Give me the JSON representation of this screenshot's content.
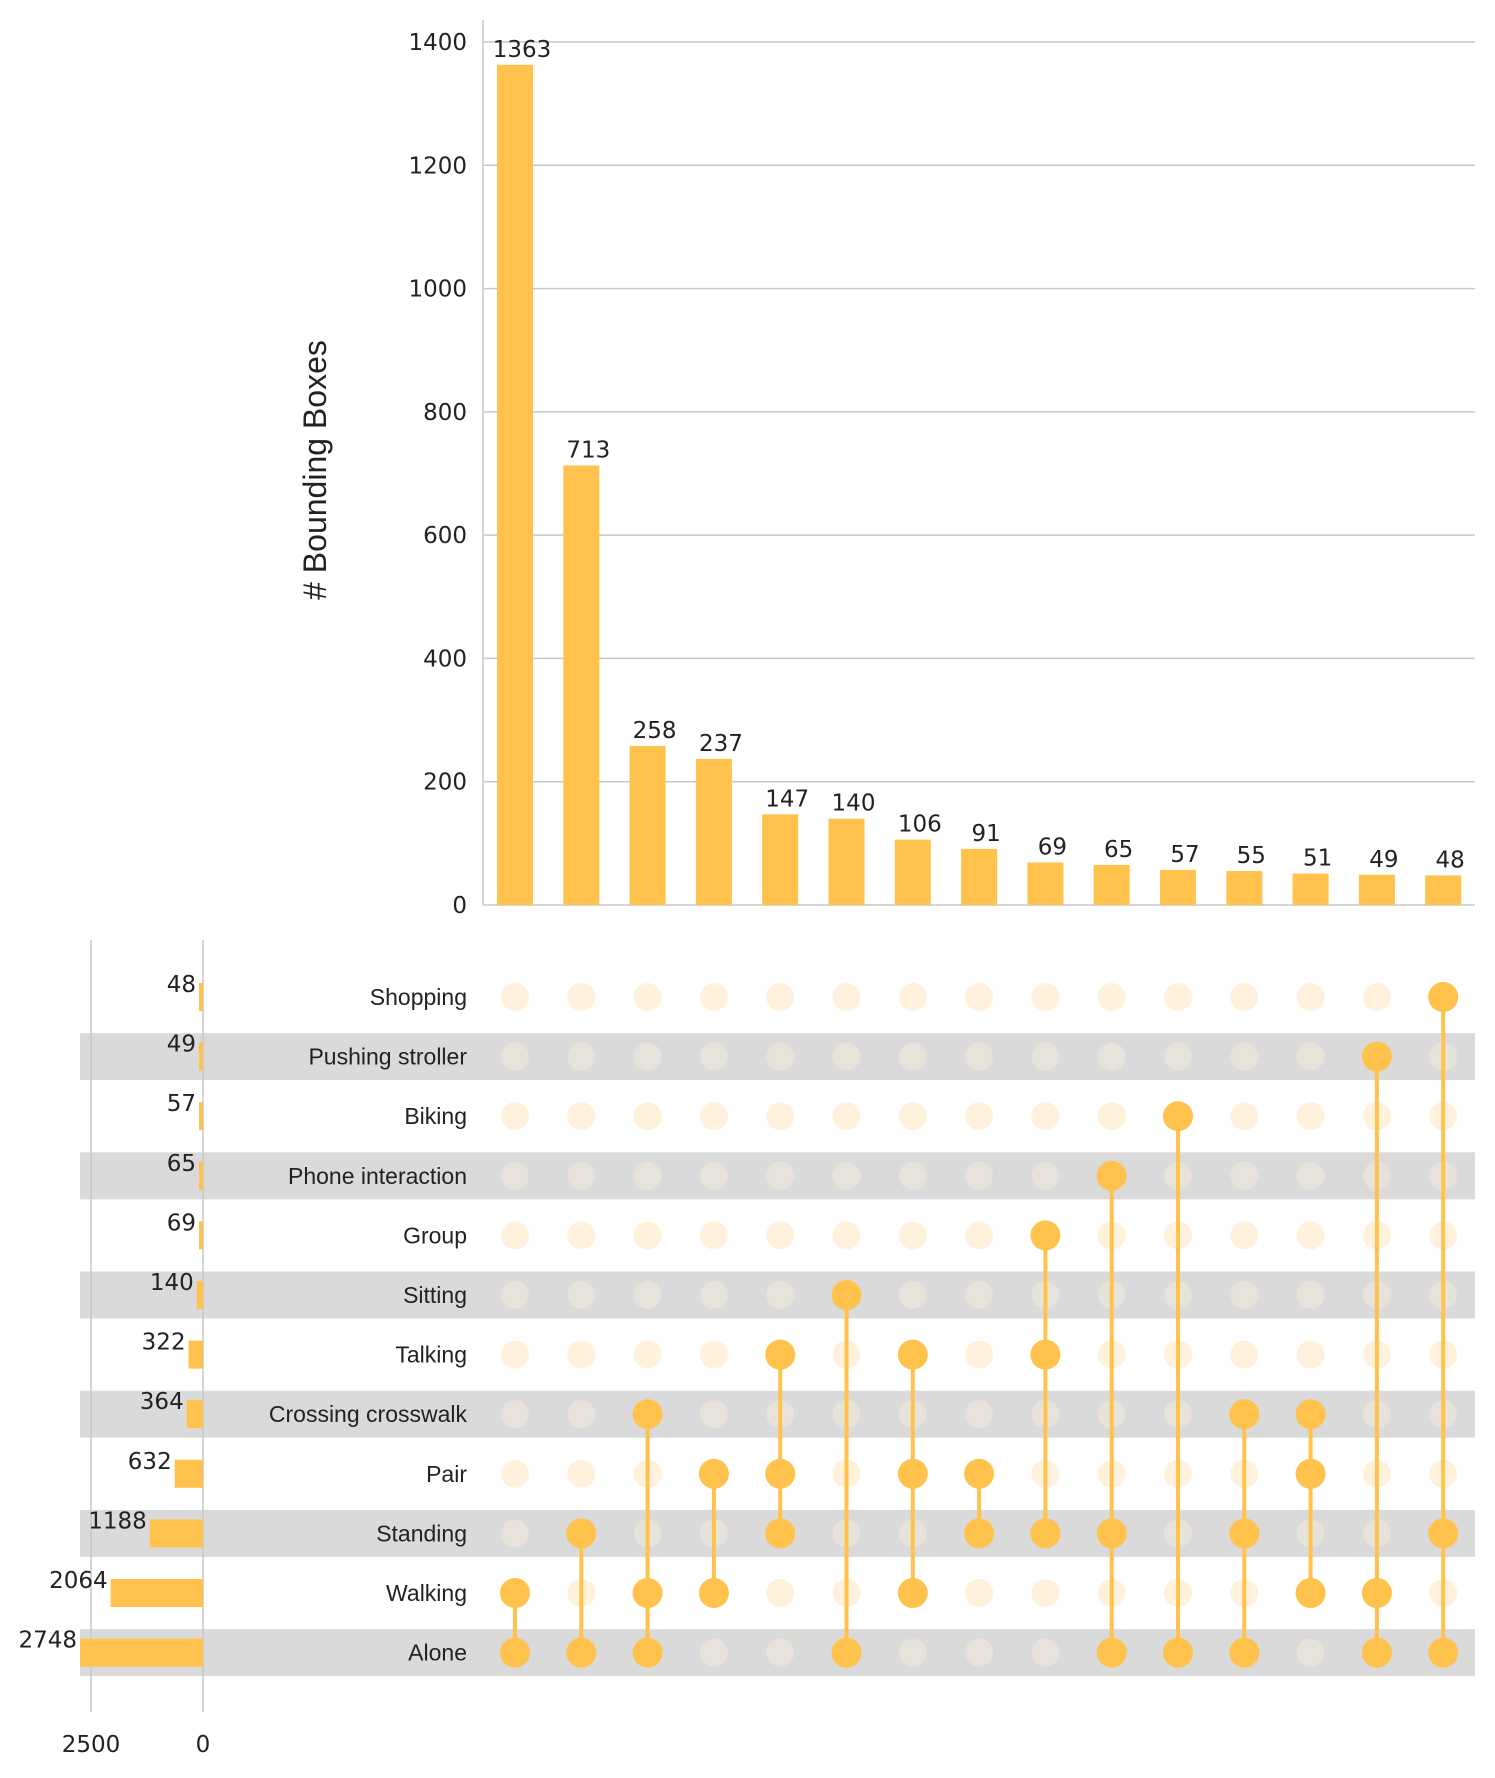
{
  "chart_data": {
    "type": "upset",
    "ylabel": "# Bounding Boxes",
    "ylim": [
      0,
      1400
    ],
    "yticks": [
      0,
      200,
      400,
      600,
      800,
      1000,
      1200,
      1400
    ],
    "grid": true,
    "colors": {
      "bar": "#ffc34d",
      "stripe": "#dadada",
      "axis": "#c8c8c8",
      "inactive_dot": "#fff1db"
    },
    "sets": [
      "Shopping",
      "Pushing stroller",
      "Biking",
      "Phone interaction",
      "Group",
      "Sitting",
      "Talking",
      "Crossing crosswalk",
      "Pair",
      "Standing",
      "Walking",
      "Alone"
    ],
    "set_sizes": [
      48,
      49,
      57,
      65,
      69,
      140,
      322,
      364,
      632,
      1188,
      2064,
      2748
    ],
    "set_size_xlim": [
      2748,
      0
    ],
    "set_size_ticks": [
      2500,
      0
    ],
    "intersections": [
      {
        "value": 1363,
        "members": [
          "Walking",
          "Alone"
        ]
      },
      {
        "value": 713,
        "members": [
          "Standing",
          "Alone"
        ]
      },
      {
        "value": 258,
        "members": [
          "Crossing crosswalk",
          "Walking",
          "Alone"
        ]
      },
      {
        "value": 237,
        "members": [
          "Pair",
          "Walking"
        ]
      },
      {
        "value": 147,
        "members": [
          "Talking",
          "Pair",
          "Standing"
        ]
      },
      {
        "value": 140,
        "members": [
          "Sitting",
          "Alone"
        ]
      },
      {
        "value": 106,
        "members": [
          "Talking",
          "Pair",
          "Walking"
        ]
      },
      {
        "value": 91,
        "members": [
          "Pair",
          "Standing"
        ]
      },
      {
        "value": 69,
        "members": [
          "Group",
          "Talking",
          "Standing"
        ]
      },
      {
        "value": 65,
        "members": [
          "Phone interaction",
          "Standing",
          "Alone"
        ]
      },
      {
        "value": 57,
        "members": [
          "Biking",
          "Alone"
        ]
      },
      {
        "value": 55,
        "members": [
          "Crossing crosswalk",
          "Standing",
          "Alone"
        ]
      },
      {
        "value": 51,
        "members": [
          "Crossing crosswalk",
          "Pair",
          "Walking"
        ]
      },
      {
        "value": 49,
        "members": [
          "Pushing stroller",
          "Walking",
          "Alone"
        ]
      },
      {
        "value": 48,
        "members": [
          "Shopping",
          "Standing",
          "Alone"
        ]
      }
    ]
  }
}
